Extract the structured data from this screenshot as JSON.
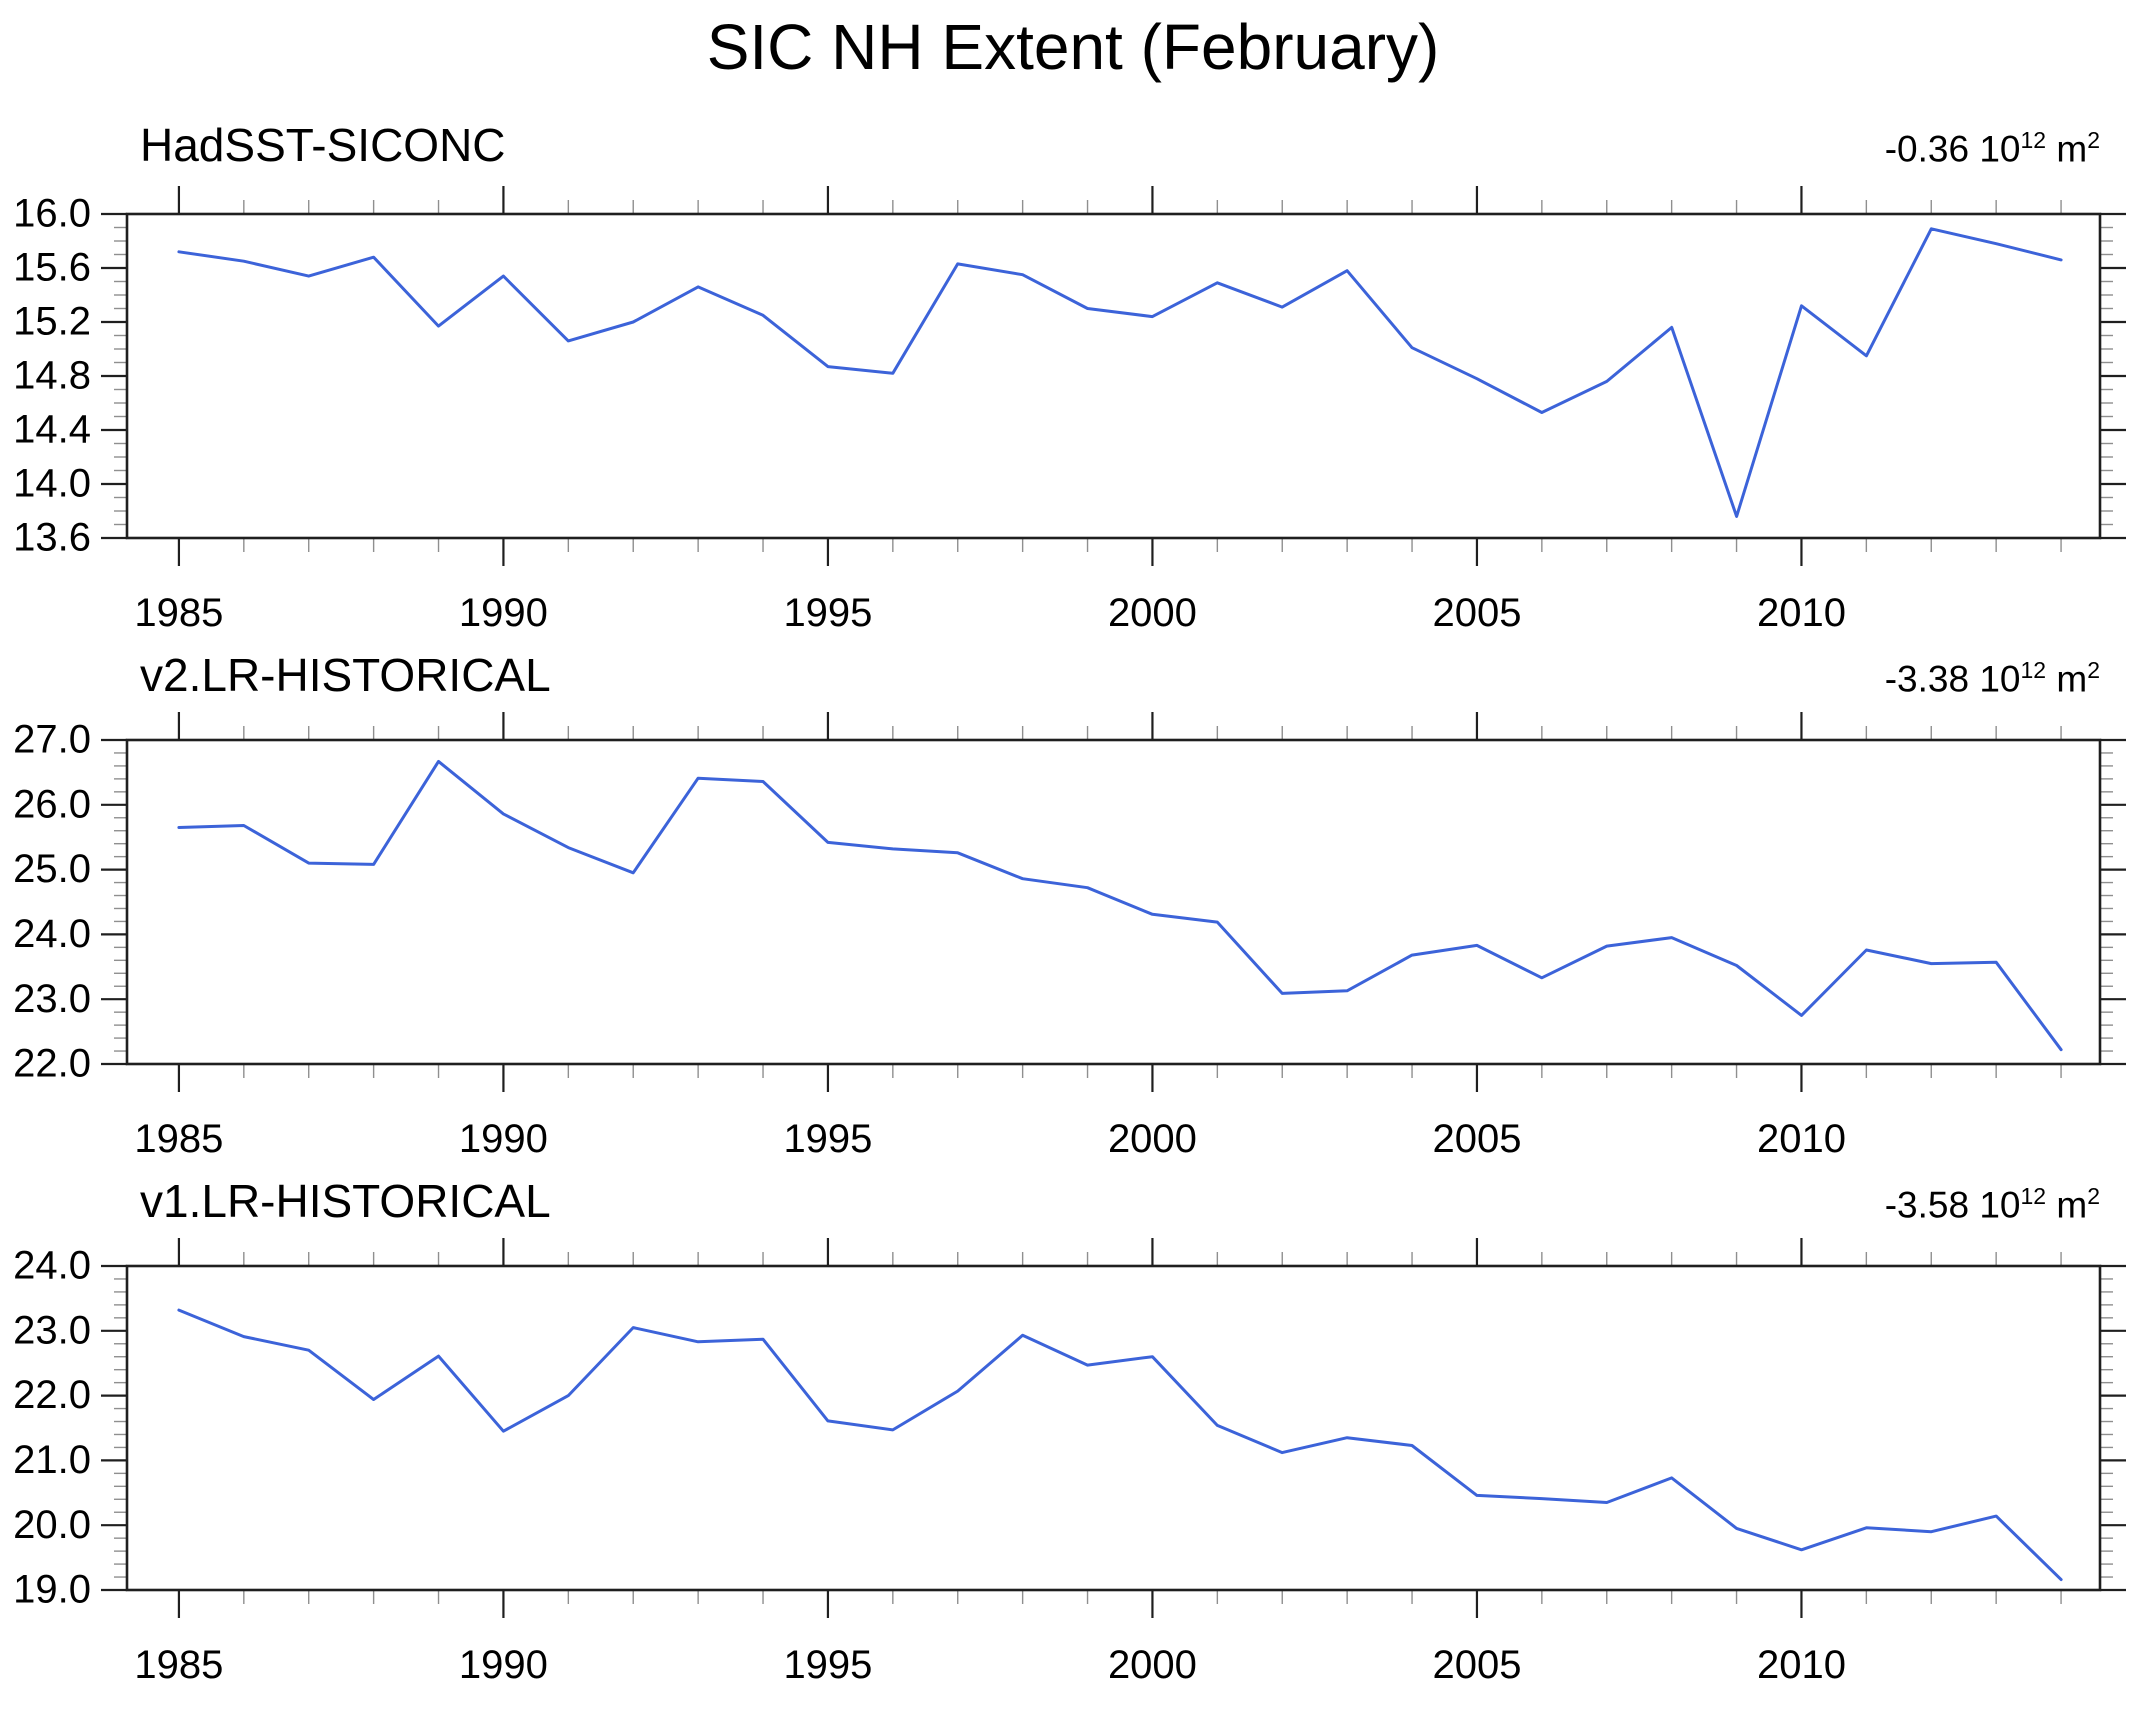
{
  "figure_title": "SIC NH Extent (February)",
  "colors": {
    "line": "#3c63d9",
    "axis": "#1f1f1f",
    "minor_tick": "#8f8f8f",
    "text": "#000000",
    "background": "#ffffff"
  },
  "years": [
    1985,
    1986,
    1987,
    1988,
    1989,
    1990,
    1991,
    1992,
    1993,
    1994,
    1995,
    1996,
    1997,
    1998,
    1999,
    2000,
    2001,
    2002,
    2003,
    2004,
    2005,
    2006,
    2007,
    2008,
    2009,
    2010,
    2011,
    2012,
    2013,
    2014
  ],
  "x_axis": {
    "xlim": [
      1984.2,
      2014.6
    ],
    "major_ticks": [
      1985,
      1990,
      1995,
      2000,
      2005,
      2010
    ],
    "major_tick_labels": [
      "1985",
      "1990",
      "1995",
      "2000",
      "2005",
      "2010"
    ],
    "minor_step_years": 1
  },
  "chart_data": [
    {
      "type": "line",
      "title": "HadSST-SICONC",
      "trend": {
        "value": "-0.36",
        "power_base": "10",
        "power_exp": "12",
        "unit_base": "m",
        "unit_exp": "2"
      },
      "ylim": [
        13.6,
        16.0
      ],
      "ytick_step": 0.4,
      "yminor_step": 0.1,
      "ytick_labels": [
        "13.6",
        "14.0",
        "14.4",
        "14.8",
        "15.2",
        "15.6",
        "16.0"
      ],
      "grid": false,
      "legend": "none",
      "values": [
        15.72,
        15.65,
        15.54,
        15.68,
        15.17,
        15.54,
        15.06,
        15.2,
        15.46,
        15.25,
        14.87,
        14.82,
        15.63,
        15.55,
        15.3,
        15.24,
        15.49,
        15.31,
        15.58,
        15.01,
        14.78,
        14.53,
        14.76,
        15.16,
        13.76,
        15.32,
        14.95,
        15.89,
        15.78,
        15.66
      ]
    },
    {
      "type": "line",
      "title": "v2.LR-HISTORICAL",
      "trend": {
        "value": "-3.38",
        "power_base": "10",
        "power_exp": "12",
        "unit_base": "m",
        "unit_exp": "2"
      },
      "ylim": [
        22.0,
        27.0
      ],
      "ytick_step": 1.0,
      "yminor_step": 0.2,
      "ytick_labels": [
        "22.0",
        "23.0",
        "24.0",
        "25.0",
        "26.0",
        "27.0"
      ],
      "grid": false,
      "legend": "none",
      "values": [
        25.65,
        25.68,
        25.1,
        25.08,
        26.67,
        25.86,
        25.34,
        24.95,
        26.41,
        26.36,
        25.42,
        25.32,
        25.26,
        24.86,
        24.72,
        24.31,
        24.19,
        23.09,
        23.13,
        23.68,
        23.83,
        23.33,
        23.82,
        23.95,
        23.52,
        22.75,
        23.76,
        23.55,
        23.57,
        22.22
      ]
    },
    {
      "type": "line",
      "title": "v1.LR-HISTORICAL",
      "trend": {
        "value": "-3.58",
        "power_base": "10",
        "power_exp": "12",
        "unit_base": "m",
        "unit_exp": "2"
      },
      "ylim": [
        19.0,
        24.0
      ],
      "ytick_step": 1.0,
      "yminor_step": 0.2,
      "ytick_labels": [
        "19.0",
        "20.0",
        "21.0",
        "22.0",
        "23.0",
        "24.0"
      ],
      "grid": false,
      "legend": "none",
      "values": [
        23.32,
        22.91,
        22.7,
        21.94,
        22.61,
        21.45,
        22.0,
        23.05,
        22.83,
        22.87,
        21.61,
        21.47,
        22.07,
        22.93,
        22.47,
        22.6,
        21.54,
        21.12,
        21.35,
        21.23,
        20.46,
        20.41,
        20.35,
        20.73,
        19.95,
        19.62,
        19.96,
        19.9,
        20.14,
        19.16
      ]
    }
  ]
}
